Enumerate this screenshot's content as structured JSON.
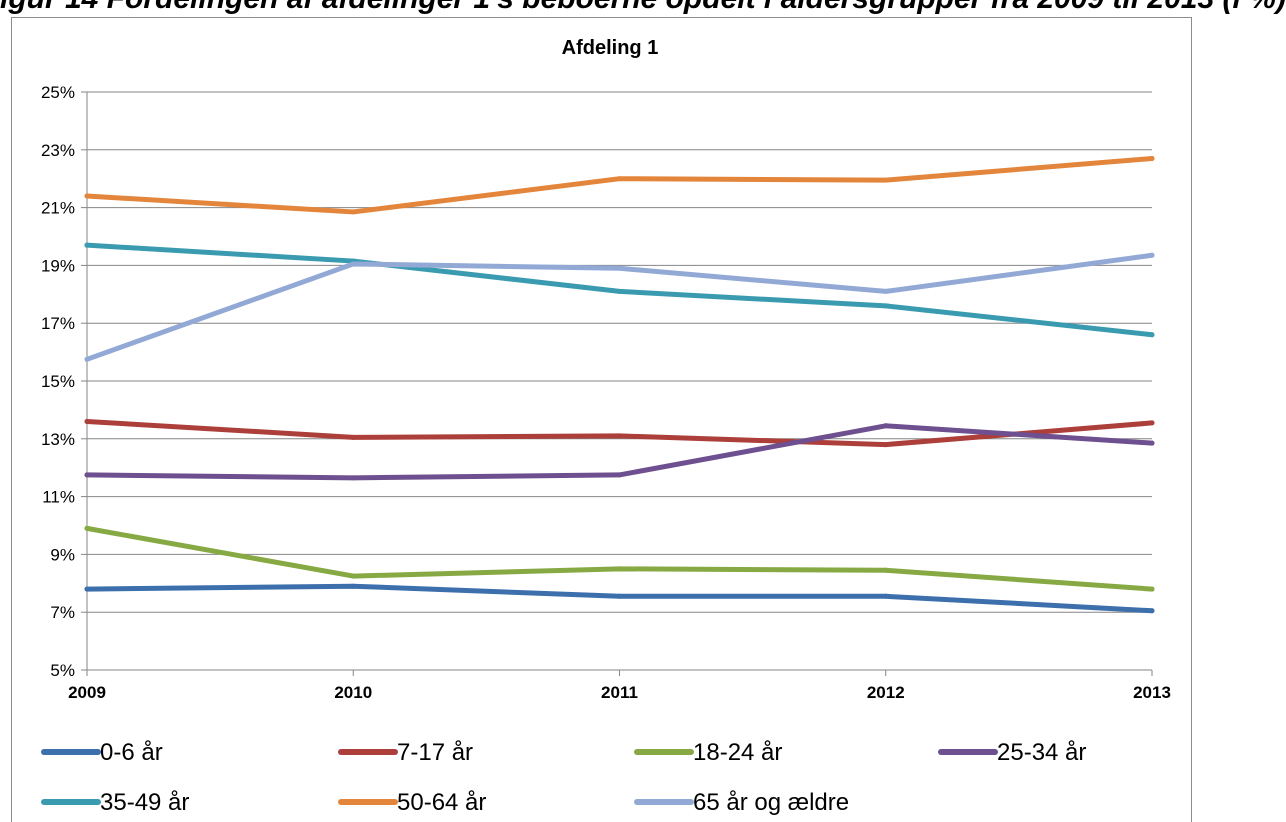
{
  "header": {
    "text": "igur 14 Fordelingen af afdelinger 1's beboerne opdelt i aldersgrupper fra 2009 til 2013 (i %)"
  },
  "chart_data": {
    "type": "line",
    "title": "Afdeling 1",
    "xlabel": "",
    "ylabel": "",
    "x": [
      "2009",
      "2010",
      "2011",
      "2012",
      "2013"
    ],
    "ylim": [
      5,
      25
    ],
    "yticks": [
      5,
      7,
      9,
      11,
      13,
      15,
      17,
      19,
      21,
      23,
      25
    ],
    "ytick_labels": [
      "5%",
      "7%",
      "9%",
      "11%",
      "13%",
      "15%",
      "17%",
      "19%",
      "21%",
      "23%",
      "25%"
    ],
    "grid": true,
    "legend_position": "bottom",
    "series": [
      {
        "name": "0-6 år",
        "color": "#3c6fac",
        "values": [
          7.8,
          7.9,
          7.55,
          7.55,
          7.05
        ]
      },
      {
        "name": "7-17 år",
        "color": "#ad3f3b",
        "values": [
          13.6,
          13.05,
          13.1,
          12.8,
          13.55
        ]
      },
      {
        "name": "18-24 år",
        "color": "#86a944",
        "values": [
          9.9,
          8.25,
          8.5,
          8.45,
          7.8
        ]
      },
      {
        "name": "25-34 år",
        "color": "#6e4f8f",
        "values": [
          11.75,
          11.65,
          11.75,
          13.45,
          12.85
        ]
      },
      {
        "name": "35-49 år",
        "color": "#3a9bb0",
        "values": [
          19.7,
          19.15,
          18.1,
          17.6,
          16.6
        ]
      },
      {
        "name": "50-64 år",
        "color": "#e3853b",
        "values": [
          21.4,
          20.85,
          22.0,
          21.95,
          22.7
        ]
      },
      {
        "name": "65 år og ældre",
        "color": "#92a9d6",
        "values": [
          15.75,
          19.05,
          18.9,
          18.1,
          19.35
        ]
      }
    ]
  }
}
